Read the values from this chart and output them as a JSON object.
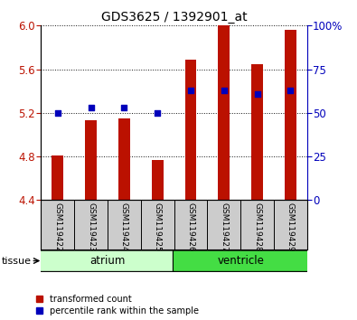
{
  "title": "GDS3625 / 1392901_at",
  "samples": [
    "GSM119422",
    "GSM119423",
    "GSM119424",
    "GSM119425",
    "GSM119426",
    "GSM119427",
    "GSM119428",
    "GSM119429"
  ],
  "bar_values": [
    4.81,
    5.13,
    5.15,
    4.77,
    5.69,
    6.0,
    5.65,
    5.96
  ],
  "bar_bottom": 4.4,
  "percentile_values": [
    50,
    53,
    53,
    50,
    63,
    63,
    61,
    63
  ],
  "ylim_left": [
    4.4,
    6.0
  ],
  "ylim_right": [
    0,
    100
  ],
  "yticks_left": [
    4.4,
    4.8,
    5.2,
    5.6,
    6.0
  ],
  "yticks_right": [
    0,
    25,
    50,
    75,
    100
  ],
  "ytick_labels_right": [
    "0",
    "25",
    "50",
    "75",
    "100%"
  ],
  "bar_color": "#bb1100",
  "dot_color": "#0000bb",
  "grid_color": "#111111",
  "tissue_groups": [
    {
      "label": "atrium",
      "start": 0,
      "end": 4,
      "color": "#ccffcc"
    },
    {
      "label": "ventricle",
      "start": 4,
      "end": 8,
      "color": "#44dd44"
    }
  ],
  "tissue_label": "tissue",
  "legend_items": [
    {
      "label": "transformed count",
      "color": "#bb1100"
    },
    {
      "label": "percentile rank within the sample",
      "color": "#0000bb"
    }
  ],
  "sample_bg_color": "#cccccc",
  "bar_width": 0.35
}
